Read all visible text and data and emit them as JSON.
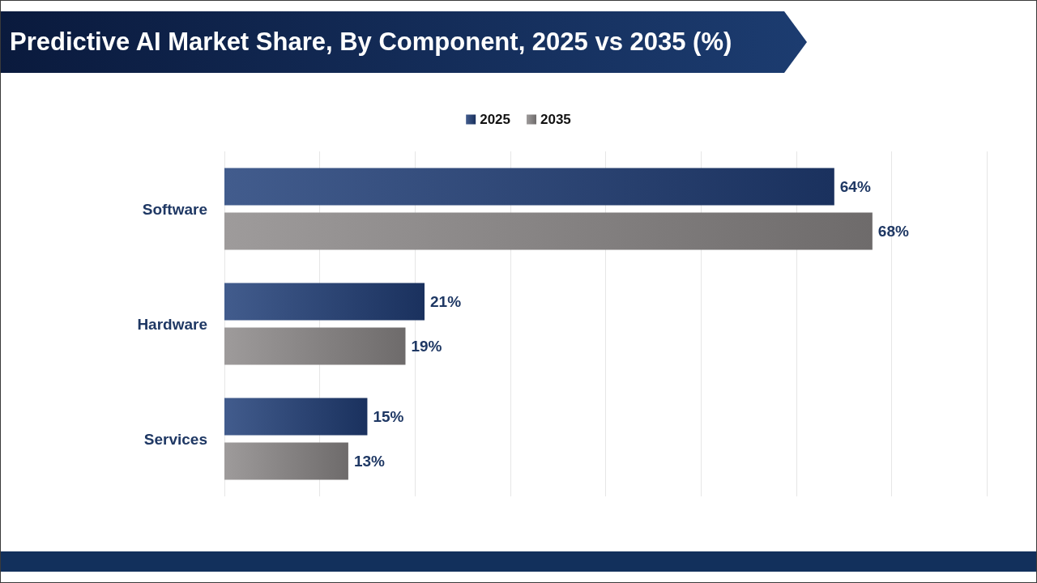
{
  "chart_data": {
    "type": "bar",
    "orientation": "horizontal",
    "title": "Predictive AI Market Share, By Component, 2025 vs 2035 (%)",
    "categories": [
      "Software",
      "Hardware",
      "Services"
    ],
    "series": [
      {
        "name": "2025",
        "color": "#213f79",
        "values": [
          64,
          21,
          15
        ],
        "value_labels": [
          "64%",
          "21%",
          "15%"
        ]
      },
      {
        "name": "2035",
        "color": "#8d8989",
        "values": [
          68,
          19,
          13
        ],
        "value_labels": [
          "68%",
          "19%",
          "13%"
        ]
      }
    ],
    "xlim": [
      0,
      80
    ],
    "xticks": [
      {
        "value": 0,
        "label": null
      },
      {
        "value": 10,
        "label": null
      },
      {
        "value": 20,
        "label": null
      },
      {
        "value": 30,
        "label": null
      },
      {
        "value": 40,
        "label": null
      },
      {
        "value": 50,
        "label": null
      },
      {
        "value": 60,
        "label": null
      },
      {
        "value": 70,
        "label": null
      },
      {
        "value": 80,
        "label": null
      }
    ],
    "grid": "x",
    "tick_labels": "y",
    "legend": "top"
  }
}
